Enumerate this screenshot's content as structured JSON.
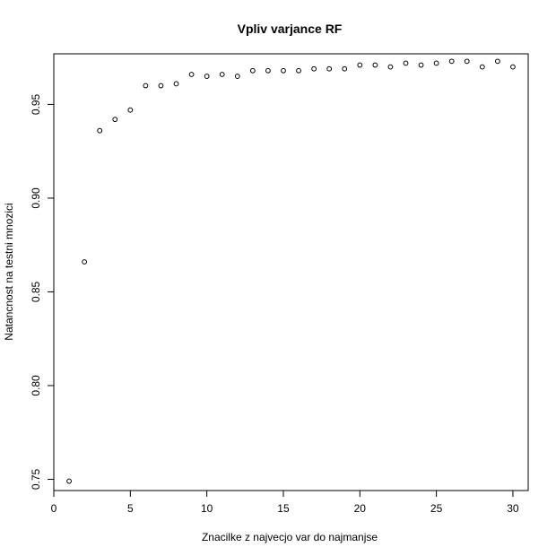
{
  "chart_data": {
    "type": "scatter",
    "title": "Vpliv varjance RF",
    "xlabel": "Znacilke z najvecjo var do najmanjse",
    "ylabel": "Natancnost na testni mnozici",
    "xlim": [
      0,
      31
    ],
    "ylim": [
      0.744,
      0.977
    ],
    "xticks": [
      0,
      5,
      10,
      15,
      20,
      25,
      30
    ],
    "yticks": [
      0.75,
      0.8,
      0.85,
      0.9,
      0.95
    ],
    "ytick_labels": [
      "0.75",
      "0.80",
      "0.85",
      "0.90",
      "0.95"
    ],
    "grid": false,
    "marker": "open-circle",
    "point_color": "#000000",
    "x": [
      1,
      2,
      3,
      4,
      5,
      6,
      7,
      8,
      9,
      10,
      11,
      12,
      13,
      14,
      15,
      16,
      17,
      18,
      19,
      20,
      21,
      22,
      23,
      24,
      25,
      26,
      27,
      28,
      29,
      30
    ],
    "y": [
      0.749,
      0.866,
      0.936,
      0.942,
      0.947,
      0.96,
      0.96,
      0.961,
      0.966,
      0.965,
      0.966,
      0.965,
      0.968,
      0.968,
      0.968,
      0.968,
      0.969,
      0.969,
      0.969,
      0.971,
      0.971,
      0.97,
      0.972,
      0.971,
      0.972,
      0.973,
      0.973,
      0.97,
      0.973,
      0.97
    ]
  }
}
